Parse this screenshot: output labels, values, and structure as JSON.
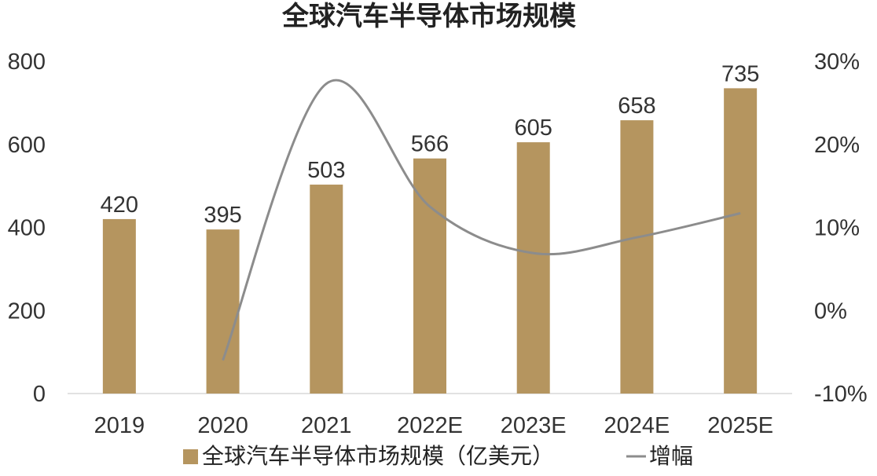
{
  "chart_data": {
    "type": "bar",
    "title": "全球汽车半导体市场规模",
    "categories": [
      "2019",
      "2020",
      "2021",
      "2022E",
      "2023E",
      "2024E",
      "2025E"
    ],
    "series": [
      {
        "name": "全球汽车半导体市场规模（亿美元）",
        "type": "bar",
        "axis": "left",
        "values": [
          420,
          395,
          503,
          566,
          605,
          658,
          735
        ],
        "labels": [
          "420",
          "395",
          "503",
          "566",
          "605",
          "658",
          "735"
        ],
        "color": "#B5955F"
      },
      {
        "name": "增幅",
        "type": "line",
        "axis": "right",
        "x": [
          "2020",
          "2021",
          "2022E",
          "2023E",
          "2024E",
          "2025E"
        ],
        "values": [
          -6.0,
          27.3,
          12.5,
          6.9,
          8.8,
          11.7
        ],
        "color": "#8C8C8C"
      }
    ],
    "y_left": {
      "ylim": [
        0,
        800
      ],
      "ticks": [
        0,
        200,
        400,
        600,
        800
      ],
      "tick_labels": [
        "0",
        "200",
        "400",
        "600",
        "800"
      ]
    },
    "y_right": {
      "ylim": [
        -10,
        30
      ],
      "ticks": [
        -10,
        0,
        10,
        20,
        30
      ],
      "tick_labels": [
        "-10%",
        "0%",
        "10%",
        "20%",
        "30%"
      ]
    },
    "grid": false,
    "legend_placement": "bottom"
  }
}
